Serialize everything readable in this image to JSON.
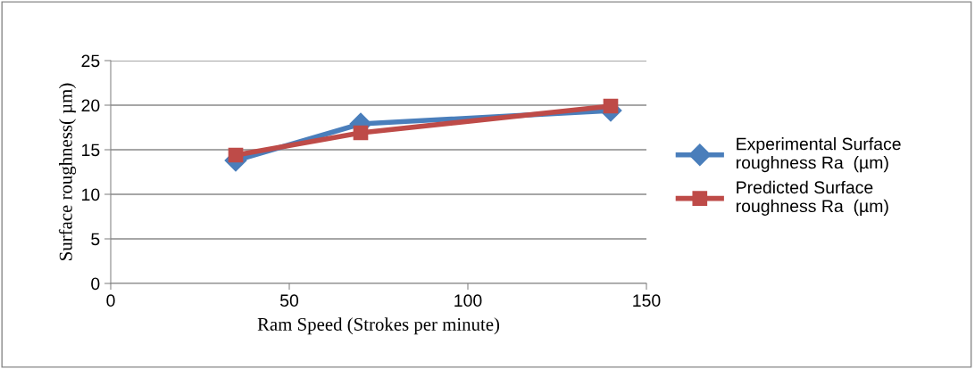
{
  "chart_data": {
    "type": "line",
    "xlabel": "Ram Speed (Strokes per minute)",
    "ylabel": "Surface roughness( µm)",
    "x": [
      35,
      70,
      140
    ],
    "series": [
      {
        "name": "Experimental Surface roughness Ra  (µm)",
        "color": "#4a7ebb",
        "values": [
          13.8,
          17.9,
          19.4
        ],
        "marker": "diamond"
      },
      {
        "name": "Predicted Surface roughness Ra  (µm)",
        "color": "#be4b48",
        "values": [
          14.4,
          16.9,
          19.9
        ],
        "marker": "square"
      }
    ],
    "xlim": [
      0,
      150
    ],
    "xticks": [
      0,
      50,
      100,
      150
    ],
    "ylim": [
      0,
      25
    ],
    "yticks": [
      0,
      5,
      10,
      15,
      20,
      25
    ],
    "grid": "y",
    "legend": "right",
    "line_style": "solid"
  }
}
